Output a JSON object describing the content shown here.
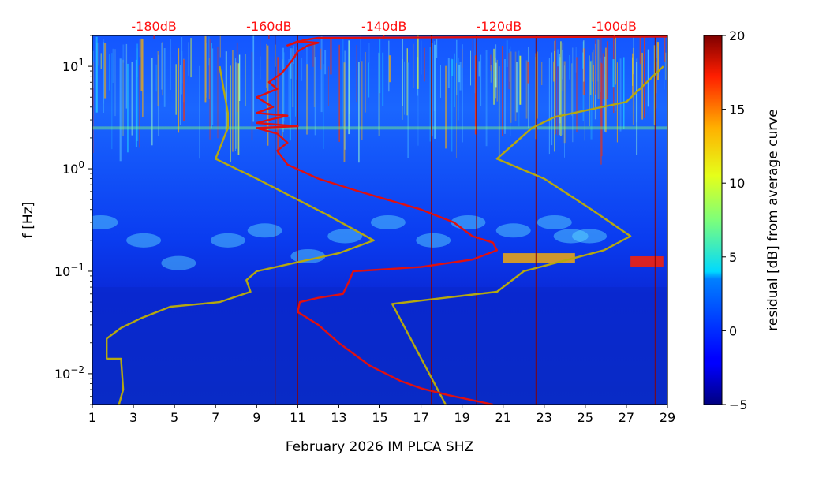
{
  "chart_data": {
    "type": "heatmap",
    "xlabel": "February 2026 IM PLCA  SHZ",
    "ylabel": "f [Hz]",
    "xlim": [
      1,
      29
    ],
    "ylim": [
      0.005,
      20
    ],
    "y_scale": "log",
    "x_ticks": [
      1,
      3,
      5,
      7,
      9,
      11,
      13,
      15,
      17,
      19,
      21,
      23,
      25,
      27,
      29
    ],
    "y_ticks": [
      {
        "value": 0.01,
        "label": "10",
        "exponent": "−2"
      },
      {
        "value": 0.1,
        "label": "10",
        "exponent": "−1"
      },
      {
        "value": 1,
        "label": "10",
        "exponent": "0"
      },
      {
        "value": 10,
        "label": "10",
        "exponent": "1"
      }
    ],
    "top_labels": [
      {
        "label": "-180dB",
        "x": 4
      },
      {
        "label": "-160dB",
        "x": 9.6
      },
      {
        "label": "-140dB",
        "x": 15.2
      },
      {
        "label": "-120dB",
        "x": 20.8
      },
      {
        "label": "-100dB",
        "x": 26.4
      }
    ],
    "colorbar": {
      "label": "residual [dB] from average curve",
      "min": -5,
      "max": 20,
      "ticks": [
        "20",
        "15",
        "10",
        "5",
        "0",
        "−5"
      ],
      "tick_values": [
        20,
        15,
        10,
        5,
        0,
        -5
      ]
    },
    "series": [
      {
        "color": "#b5a80f",
        "points": [
          [
            2.3,
            0.005
          ],
          [
            2.5,
            0.007
          ],
          [
            2.4,
            0.014
          ],
          [
            1.7,
            0.014
          ],
          [
            1.7,
            0.022
          ],
          [
            2.4,
            0.028
          ],
          [
            3.4,
            0.035
          ],
          [
            4.8,
            0.045
          ],
          [
            7.2,
            0.05
          ],
          [
            8.7,
            0.063
          ],
          [
            8.5,
            0.082
          ],
          [
            9.0,
            0.1
          ],
          [
            13.0,
            0.15
          ],
          [
            14.7,
            0.2
          ],
          [
            12.5,
            0.35
          ],
          [
            9.0,
            0.8
          ],
          [
            7.0,
            1.25
          ],
          [
            7.6,
            2.5
          ],
          [
            7.6,
            3.5
          ],
          [
            7.2,
            10
          ]
        ]
      },
      {
        "color": "#b5a80f",
        "points": [
          [
            18.2,
            0.005
          ],
          [
            15.6,
            0.048
          ],
          [
            20.7,
            0.063
          ],
          [
            22.0,
            0.1
          ],
          [
            25.9,
            0.16
          ],
          [
            27.2,
            0.22
          ],
          [
            25.3,
            0.4
          ],
          [
            23.0,
            0.8
          ],
          [
            20.7,
            1.25
          ],
          [
            22.4,
            2.5
          ],
          [
            23.5,
            3.2
          ],
          [
            27.0,
            4.5
          ],
          [
            28.8,
            10
          ]
        ]
      },
      {
        "color": "#e01010",
        "points": [
          [
            20.5,
            0.005
          ],
          [
            18.3,
            0.0062
          ],
          [
            17.0,
            0.0072
          ],
          [
            16.0,
            0.0085
          ],
          [
            14.5,
            0.012
          ],
          [
            13.0,
            0.02
          ],
          [
            12.0,
            0.03
          ],
          [
            11.0,
            0.04
          ],
          [
            11.1,
            0.05
          ],
          [
            12.0,
            0.055
          ],
          [
            13.2,
            0.06
          ],
          [
            13.5,
            0.08
          ],
          [
            13.7,
            0.1
          ],
          [
            17.0,
            0.11
          ],
          [
            19.5,
            0.13
          ],
          [
            20.7,
            0.16
          ],
          [
            20.5,
            0.19
          ],
          [
            19.5,
            0.22
          ],
          [
            18.6,
            0.3
          ],
          [
            17.0,
            0.4
          ],
          [
            14.0,
            0.6
          ],
          [
            12.0,
            0.8
          ],
          [
            10.5,
            1.1
          ],
          [
            10.0,
            1.5
          ],
          [
            10.5,
            1.8
          ],
          [
            10.0,
            2.2
          ],
          [
            9.0,
            2.5
          ],
          [
            11.0,
            2.6
          ],
          [
            9.0,
            2.8
          ],
          [
            9.6,
            3.0
          ],
          [
            10.5,
            3.3
          ],
          [
            9.0,
            3.5
          ],
          [
            9.8,
            4.0
          ],
          [
            9.0,
            5.0
          ],
          [
            10.0,
            6.0
          ],
          [
            9.6,
            7.0
          ],
          [
            10.2,
            8.5
          ],
          [
            10.5,
            10
          ],
          [
            10.8,
            12
          ],
          [
            11.0,
            14
          ],
          [
            11.5,
            16
          ],
          [
            12.0,
            17
          ],
          [
            11.0,
            17.5
          ],
          [
            10.5,
            16
          ],
          [
            11.3,
            18
          ],
          [
            12.0,
            19
          ],
          [
            29,
            19.5
          ]
        ]
      }
    ]
  }
}
